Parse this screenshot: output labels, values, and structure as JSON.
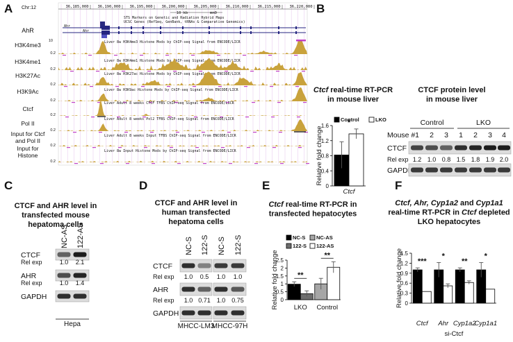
{
  "panel_labels": {
    "a": "A",
    "b": "B",
    "c": "C",
    "d": "D",
    "e": "E",
    "f": "F"
  },
  "panel_a": {
    "chrom": "Chr:12",
    "positions": [
      "36,185,000",
      "36,190,000",
      "36,195,000",
      "36,200,000",
      "36,205,000",
      "36,210,000",
      "36,215,000",
      "36,220,000"
    ],
    "scale_bar": "10 kb",
    "assembly": "mm9",
    "header_lines": [
      "STS Markers on Genetic and Radiation Hybrid Maps",
      "UCSC Genes (RefSeq, GenBank, tRNAs & Comparative Genomics)"
    ],
    "gene": {
      "label": "AhR",
      "names": [
        "Ahr",
        "Ahr"
      ]
    },
    "tracks": [
      {
        "label": [
          "H3K4me3"
        ],
        "scale": [
          "10",
          "0.2"
        ],
        "description": "Liver 8w H3K4me3 Histone Mods by ChIP-seq Signal from ENCODE/LICR"
      },
      {
        "label": [
          "H3K4me1"
        ],
        "scale": [
          "0.2"
        ],
        "description": "Liver 8w H3K4me1 Histone Mods by ChIP-seq Signal from ENCODE/LICR"
      },
      {
        "label": [
          "H3K27Ac"
        ],
        "scale": [
          "0.2"
        ],
        "description": "Liver 8w H3K27ac Histone Mods by ChIP-seq Signal from ENCODE/LICR"
      },
      {
        "label": [
          "H3K9Ac"
        ],
        "scale": [
          "0.2"
        ],
        "description": "Liver 8w H3K9ac Histone Mods by ChIP-seq Signal from ENCODE/LICR"
      },
      {
        "label": [
          "Ctcf"
        ],
        "scale": [
          "0.2"
        ],
        "description": "Liver Adult 8 weeks CTCF TFBS ChIP-seq Signal from ENCODE/LICR"
      },
      {
        "label": [
          "Pol II"
        ],
        "scale": [
          "0.2"
        ],
        "description": "Liver Adult 8 weeks Pol2 TFBS ChIP-seq Signal from ENCODE/LICR"
      },
      {
        "label": [
          "Input for Ctcf",
          "and Pol II"
        ],
        "scale": [
          "0.2"
        ],
        "description": "Liver Adult 8 weeks Input TFBS ChIP-seq Signal from ENCODE/LICR"
      },
      {
        "label": [
          "Input for",
          "Histone"
        ],
        "scale": [
          "0.2"
        ],
        "description": "Liver 8w Input Histone Mods by ChIP-seq Signal from ENCODE/LICR"
      }
    ]
  },
  "blot_b": {
    "title": [
      "CTCF protein level",
      "in mouse liver"
    ],
    "groups": [
      "Control",
      "LKO"
    ],
    "lane_row_label": "Mouse #",
    "lanes": [
      "1",
      "2",
      "3",
      "1",
      "2",
      "3",
      "4"
    ],
    "rows": [
      {
        "label": "CTCF"
      },
      {
        "label": "Rel exp",
        "values": [
          "1.2",
          "1.0",
          "0.8",
          "1.5",
          "1.8",
          "1.9",
          "2.0"
        ]
      },
      {
        "label": "GAPDH"
      }
    ],
    "footer": []
  },
  "blot_c": {
    "title": [
      "CTCF and AHR level in",
      "transfected mouse",
      "hepatoma cells"
    ],
    "groups": [],
    "lanes": [
      "NC-AS",
      "122-AS"
    ],
    "rows": [
      {
        "label": "CTCF"
      },
      {
        "label": "Rel exp",
        "values": [
          "1.0",
          "2.1"
        ]
      },
      {
        "label": "AHR"
      },
      {
        "label": "Rel exp",
        "values": [
          "1.0",
          "1.4"
        ]
      },
      {
        "label": "GAPDH"
      }
    ],
    "footer": [
      "Hepa"
    ]
  },
  "blot_d": {
    "title": [
      "CTCF and AHR level in",
      "human transfected",
      "hepatoma cells"
    ],
    "groups": [],
    "lanes": [
      "NC-S",
      "122-S",
      "NC-S",
      "122-S"
    ],
    "rows": [
      {
        "label": "CTCF"
      },
      {
        "label": "Rel exp",
        "values": [
          "1.0",
          "0.5",
          "1.0",
          "1.0"
        ]
      },
      {
        "label": "AHR"
      },
      {
        "label": "Rel exp",
        "values": [
          "1.0",
          "0.71",
          "1.0",
          "0.75"
        ]
      },
      {
        "label": "GAPDH"
      }
    ],
    "footer": [
      "MHCC-LM3",
      "MHCC-97H"
    ]
  },
  "chart_data": [
    {
      "type": "bar",
      "title": [
        [
          {
            "text": "Ctcf",
            "italic": true
          },
          {
            "text": "real-time RT-PCR"
          }
        ],
        [
          {
            "text": "in mouse liver"
          }
        ]
      ],
      "categories": [
        "Ctcf"
      ],
      "category_italic": true,
      "series": [
        {
          "name": "Control",
          "color": "#000000",
          "values": [
            0.82
          ],
          "errors": [
            0.35
          ]
        },
        {
          "name": "LKO",
          "color": "#ffffff",
          "values": [
            1.38
          ],
          "errors": [
            0.13
          ]
        }
      ],
      "ylabel": "Relative fold change",
      "ylim": [
        0,
        1.6
      ],
      "yticks": [
        0,
        0.4,
        0.8,
        1.2,
        1.6
      ],
      "annotations": [
        "*"
      ]
    },
    {
      "type": "bar",
      "title": [
        [
          {
            "text": "Ctcf",
            "italic": true
          },
          {
            "text": "real-time RT-PCR in"
          }
        ],
        [
          {
            "text": "transfected hepatocytes"
          }
        ]
      ],
      "categories": [
        "LKO",
        "Control"
      ],
      "category_italic": false,
      "series": [
        {
          "name": "NC-S",
          "color": "#000000",
          "values": [
            0.98,
            null
          ],
          "errors": [
            0.15,
            null
          ]
        },
        {
          "name": "NC-AS",
          "color": "#a6a6a6",
          "values": [
            null,
            1.0
          ],
          "errors": [
            null,
            0.35
          ]
        },
        {
          "name": "122-S",
          "color": "#6e6e6e",
          "values": [
            0.38,
            null
          ],
          "errors": [
            0.18,
            null
          ]
        },
        {
          "name": "122-AS",
          "color": "#ffffff",
          "values": [
            null,
            2.05
          ],
          "errors": [
            null,
            0.35
          ]
        }
      ],
      "ylabel": "Relative fold change",
      "ylim": [
        0,
        2.5
      ],
      "yticks": [
        0,
        0.5,
        1,
        1.5,
        2,
        2.5
      ],
      "annotations": [
        "**",
        "**"
      ]
    },
    {
      "type": "bar",
      "title": [
        [
          {
            "text": "Ctcf, Ahr, Cyp1a2",
            "italic": true
          },
          {
            "text": "and"
          },
          {
            "text": "Cyp1a1",
            "italic": true
          }
        ],
        [
          {
            "text": "real-time RT-PCR in"
          },
          {
            "text": "Ctcf",
            "italic": true
          },
          {
            "text": "depleted"
          }
        ],
        [
          {
            "text": "LKO hepatocytes"
          }
        ]
      ],
      "categories": [
        "Ctcf",
        "Ahr",
        "Cyp1a2",
        "Cyp1a1"
      ],
      "category_italic": true,
      "series": [
        {
          "color": "#000000",
          "values": [
            1.0,
            1.0,
            1.0,
            1.0
          ],
          "errors": [
            0.06,
            0.22,
            0.06,
            0.22
          ]
        },
        {
          "color": "#ffffff",
          "values": [
            0.35,
            0.52,
            0.62,
            0.42
          ],
          "errors": [
            null,
            0.06,
            0.05,
            null
          ]
        }
      ],
      "ylabel": "Relative fold change",
      "xlabel": "si-Ctcf",
      "ylim": [
        0,
        1.5
      ],
      "yticks": [
        0,
        0.3,
        0.6,
        0.9,
        1.2,
        1.5
      ],
      "annotations": [
        "***",
        "*",
        "**",
        "*"
      ]
    }
  ]
}
